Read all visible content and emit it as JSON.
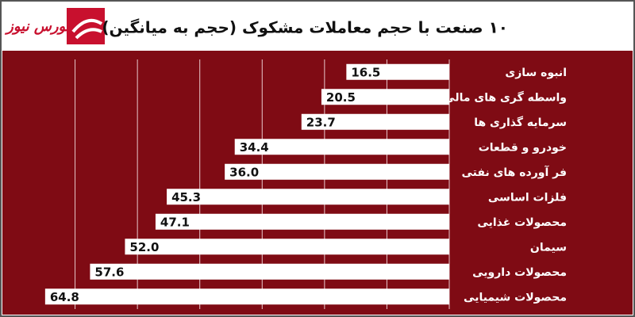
{
  "chart_data": {
    "type": "bar",
    "orientation": "horizontal",
    "title": "۱۰ صنعت با حجم معاملات مشکوک (حجم به میانگین)",
    "brand": "بورس نیوز",
    "categories": [
      "انبوه سازی",
      "واسطه گری های مالی و پولی",
      "سرمایه گذاری ها",
      "خودرو و قطعات",
      "فر آورده های نفتی",
      "فلزات اساسی",
      "محصولات غذایی",
      "سیمان",
      "محصولات دارویی",
      "محصولات شیمیایی"
    ],
    "values": [
      16.5,
      20.5,
      23.7,
      34.4,
      36.0,
      45.3,
      47.1,
      52.0,
      57.6,
      64.8
    ],
    "value_labels": [
      "16.5",
      "20.5",
      "23.7",
      "34.4",
      "36.0",
      "45.3",
      "47.1",
      "52.0",
      "57.6",
      "64.8"
    ],
    "color": "#ffffff",
    "xlim": [
      0,
      70
    ],
    "xticks": [
      0,
      10,
      20,
      30,
      40,
      50,
      60
    ],
    "grid": true
  }
}
